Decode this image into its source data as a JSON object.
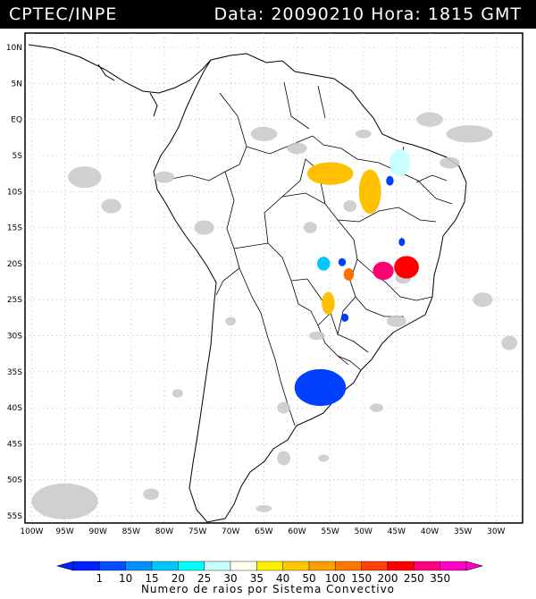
{
  "header": {
    "source": "CPTEC/INPE",
    "timestamp": "Data: 20090210 Hora: 1815 GMT"
  },
  "map": {
    "lat_labels": [
      "10N",
      "5N",
      "EQ",
      "5S",
      "10S",
      "15S",
      "20S",
      "25S",
      "30S",
      "35S",
      "40S",
      "45S",
      "50S",
      "55S"
    ],
    "lon_labels": [
      "100W",
      "95W",
      "90W",
      "85W",
      "80W",
      "75W",
      "70W",
      "65W",
      "60W",
      "55W",
      "50W",
      "45W",
      "40W",
      "35W",
      "30W"
    ],
    "lat_range": [
      -56,
      12
    ],
    "lon_range": [
      -101,
      -26
    ],
    "grid": true
  },
  "legend": {
    "title": "Numero de raios por Sistema Convectivo",
    "ticks": [
      "1",
      "10",
      "15",
      "20",
      "25",
      "30",
      "35",
      "40",
      "50",
      "100",
      "150",
      "200",
      "250",
      "350"
    ],
    "colors": [
      "#0020ff",
      "#0050ff",
      "#0090ff",
      "#00c8ff",
      "#00ffff",
      "#c8ffff",
      "#fffff0",
      "#fff000",
      "#ffc800",
      "#ffa000",
      "#ff7800",
      "#ff4000",
      "#ff0000",
      "#ff0080",
      "#ff00c8"
    ]
  },
  "systems": [
    {
      "name": "amazon-north",
      "lon": -55,
      "lat": -7.5,
      "rx": 3.4,
      "ry": 1.5,
      "color": "#ffc000"
    },
    {
      "name": "amazon-east",
      "lon": -49,
      "lat": -10,
      "rx": 1.6,
      "ry": 3.0,
      "color": "#ffc000"
    },
    {
      "name": "piaui",
      "lon": -44.5,
      "lat": -6,
      "rx": 1.5,
      "ry": 1.8,
      "color": "#c8ffff"
    },
    {
      "name": "mato-grosso",
      "lon": -56,
      "lat": -20,
      "rx": 0.9,
      "ry": 0.9,
      "color": "#00c8ff"
    },
    {
      "name": "goias",
      "lon": -52.2,
      "lat": -21.5,
      "rx": 0.7,
      "ry": 0.8,
      "color": "#ff7000"
    },
    {
      "name": "sao-paulo",
      "lon": -47,
      "lat": -21,
      "rx": 1.5,
      "ry": 1.2,
      "color": "#ff0070"
    },
    {
      "name": "minas-gerais",
      "lon": -43.5,
      "lat": -20.5,
      "rx": 1.8,
      "ry": 1.5,
      "color": "#ff0000"
    },
    {
      "name": "parana",
      "lon": -55.3,
      "lat": -25.5,
      "rx": 0.9,
      "ry": 1.5,
      "color": "#ffc000"
    },
    {
      "name": "uruguay-plata",
      "lon": -56.5,
      "lat": -37.2,
      "rx": 3.8,
      "ry": 2.5,
      "color": "#0040ff"
    },
    {
      "name": "bahia-small",
      "lon": -46,
      "lat": -8.5,
      "rx": 0.5,
      "ry": 0.6,
      "color": "#0040ff"
    },
    {
      "name": "mato-grosso-sul",
      "lon": -53.2,
      "lat": -19.8,
      "rx": 0.5,
      "ry": 0.5,
      "color": "#0040ff"
    },
    {
      "name": "espirito-santo",
      "lon": -44.2,
      "lat": -17,
      "rx": 0.4,
      "ry": 0.5,
      "color": "#0040ff"
    },
    {
      "name": "santa-catarina",
      "lon": -52.8,
      "lat": -27.5,
      "rx": 0.5,
      "ry": 0.5,
      "color": "#0040ff"
    }
  ]
}
